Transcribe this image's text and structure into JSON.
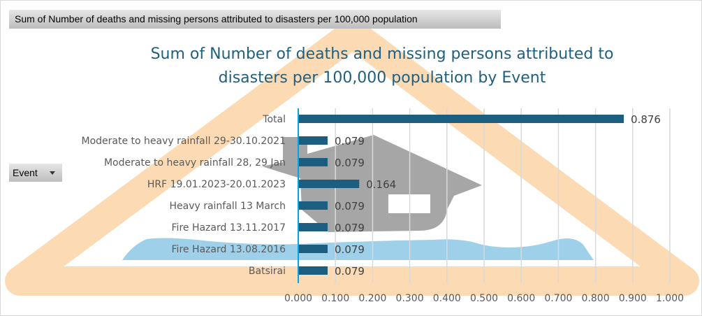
{
  "value_field_button": "Sum of Number of deaths and missing persons attributed to disasters per 100,000 population",
  "row_field_button": "Event",
  "chart_data": {
    "type": "bar",
    "orientation": "horizontal",
    "title_lines": [
      "Sum of Number of deaths and missing persons attributed to",
      "disasters per 100,000 population by Event"
    ],
    "categories": [
      "Total",
      "Moderate to heavy rainfall 29-30.10.2021",
      "Moderate to heavy rainfall 28, 29 Jan",
      "HRF 19.01.2023-20.01.2023",
      "Heavy rainfall 13 March",
      "Fire Hazard 13.11.2017",
      "Fire Hazard 13.08.2016",
      "Batsirai"
    ],
    "values": [
      0.876,
      0.079,
      0.079,
      0.164,
      0.079,
      0.079,
      0.079,
      0.079
    ],
    "value_labels": [
      "0.876",
      "0.079",
      "0.079",
      "0.164",
      "0.079",
      "0.079",
      "0.079",
      "0.079"
    ],
    "xlim": [
      0,
      1.0
    ],
    "xticks": [
      "0.000",
      "0.100",
      "0.200",
      "0.300",
      "0.400",
      "0.500",
      "0.600",
      "0.700",
      "0.800",
      "0.900",
      "1.000"
    ],
    "grid": true,
    "bar_color": "#1b5e80",
    "axis_color": "#00a2e8"
  }
}
